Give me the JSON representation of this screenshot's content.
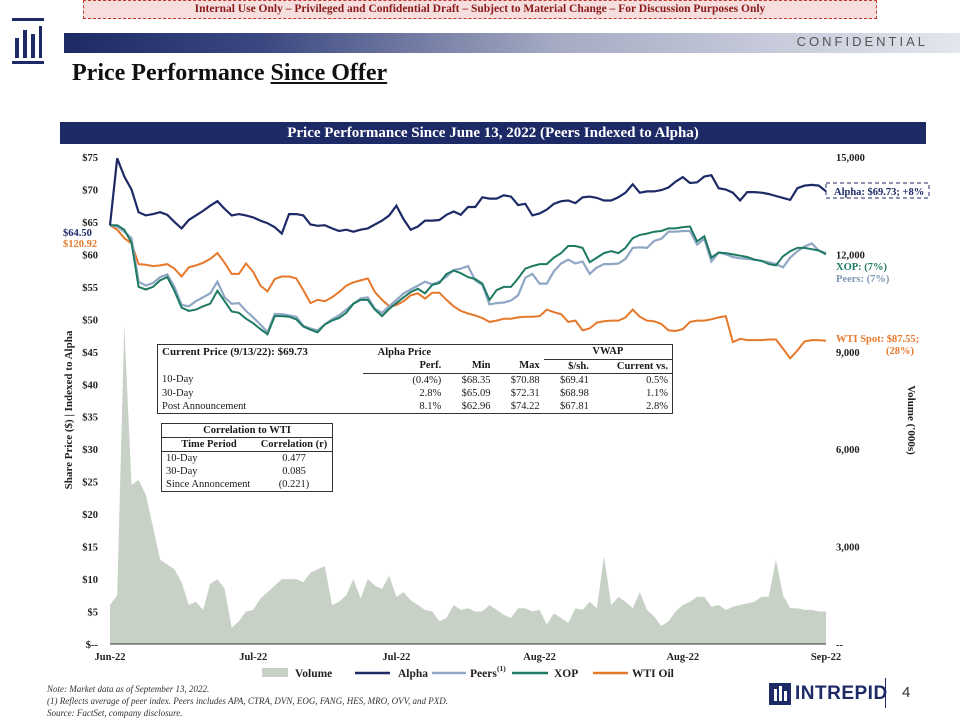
{
  "banner": "Internal Use Only – Privileged and Confidential Draft – Subject to Material Change – For Discussion Purposes Only",
  "confidential": "CONFIDENTIAL",
  "title_main": "Price Performance ",
  "title_underlined": "Since Offer",
  "chart_header": "Price Performance Since June 13, 2022 (Peers Indexed to Alpha)",
  "colors": {
    "navy": "#1e2a66",
    "peers": "#8fa7c4",
    "xop": "#1f7a63",
    "wti": "#e6782b",
    "volume": "#c7d1c6"
  },
  "chart_data": {
    "type": "line",
    "x_ticks": [
      "Jun-22",
      "Jul-22",
      "Jul-22",
      "Aug-22",
      "Aug-22",
      "Sep-22"
    ],
    "x_tick_index": [
      0,
      20,
      40,
      60,
      80,
      100
    ],
    "ylabel": "Share Price ($) | Indexed to Alpha",
    "ylim": [
      0,
      75
    ],
    "y_ticks": [
      "$--",
      "$5",
      "$10",
      "$15",
      "$20",
      "$25",
      "$30",
      "$35",
      "$40",
      "$45",
      "$50",
      "$55",
      "$60",
      "$65",
      "$70",
      "$75"
    ],
    "y2label": "Volume ('000s)",
    "y2lim": [
      0,
      15000
    ],
    "y2_ticks": [
      "--",
      "3,000",
      "6,000",
      "9,000",
      "12,000",
      "15,000"
    ],
    "series": [
      {
        "name": "Volume",
        "type": "area",
        "values": [
          1200,
          1500,
          9800,
          4900,
          5050,
          4600,
          3600,
          2600,
          2450,
          2300,
          1900,
          1200,
          1300,
          1050,
          1850,
          2000,
          1700,
          500,
          700,
          1000,
          1050,
          1400,
          1600,
          1800,
          2000,
          2000,
          2000,
          1900,
          2200,
          2300,
          2400,
          1200,
          1300,
          1500,
          2000,
          1400,
          2000,
          1800,
          1700,
          2100,
          1450,
          1600,
          1350,
          1200,
          1050,
          1000,
          700,
          800,
          1200,
          1050,
          1100,
          1000,
          1000,
          1200,
          1050,
          900,
          800,
          1100,
          1100,
          1000,
          1050,
          600,
          950,
          800,
          650,
          1100,
          1050,
          1300,
          1100,
          2700,
          1200,
          1450,
          1300,
          1100,
          1600,
          1050,
          850,
          550,
          700,
          1000,
          1200,
          1300,
          1450,
          1450,
          1150,
          1200,
          1050,
          1150,
          1200,
          1250,
          1300,
          1450,
          1450,
          2600,
          1500,
          1100,
          1100,
          1050,
          1050,
          1000,
          1000
        ]
      },
      {
        "name": "Alpha",
        "values": [
          64.5,
          74.8,
          72,
          70,
          66.5,
          66,
          66.2,
          66.5,
          66.1,
          65,
          64,
          65.3,
          66,
          66.7,
          67.5,
          68.2,
          67,
          66,
          66.2,
          66,
          65.7,
          65.2,
          64.8,
          64.2,
          63.2,
          66.2,
          66.2,
          66,
          64.6,
          64.4,
          64.5,
          64.0,
          63.6,
          63.8,
          63.5,
          63.8,
          64.0,
          64.6,
          65.2,
          66.0,
          67.5,
          65.4,
          63.8,
          64.3,
          65.2,
          65.2,
          65.3,
          66.1,
          66.6,
          66.1,
          67.3,
          67.3,
          68.8,
          68.6,
          68.6,
          69.1,
          68.9,
          67.6,
          67.8,
          66.0,
          66.3,
          66.9,
          67.8,
          68.2,
          68.3,
          67.9,
          68.8,
          68.9,
          68.7,
          68.3,
          68.3,
          68.8,
          69.5,
          70.8,
          69.5,
          69.7,
          69.7,
          69.9,
          70.3,
          71.2,
          71.9,
          71.0,
          71.1,
          72.0,
          72.2,
          70.2,
          70.0,
          69.5,
          68.3,
          69.6,
          69.6,
          69.5,
          69.3,
          69.0,
          68.7,
          68.4,
          70.2,
          70.6,
          70.7,
          70.6,
          69.73
        ]
      },
      {
        "name": "Peers",
        "values": [
          64.5,
          64.3,
          63.5,
          62.5,
          55.8,
          55.2,
          55.6,
          56.5,
          56.9,
          55.0,
          52.2,
          52.0,
          52.8,
          53.4,
          54.0,
          55.8,
          53.4,
          52.4,
          52.5,
          51.3,
          50.3,
          49.2,
          48.0,
          50.8,
          50.8,
          50.6,
          50.4,
          49.0,
          48.6,
          48.3,
          49.2,
          50.0,
          50.6,
          51.5,
          52.4,
          53.2,
          53.4,
          51.6,
          51.0,
          52.0,
          53.0,
          54.0,
          54.6,
          55.2,
          55.8,
          55.4,
          55.8,
          56.6,
          57.6,
          57.8,
          58.2,
          56.0,
          55.3,
          52.3,
          52.5,
          52.6,
          52.9,
          53.7,
          56.4,
          57.0,
          55.5,
          55.5,
          57.4,
          58.6,
          59.2,
          58.6,
          58.9,
          57.0,
          58.0,
          58.5,
          58.5,
          58.6,
          59.3,
          61.0,
          61.1,
          61.0,
          62.1,
          62.4,
          63.5,
          63.5,
          63.6,
          63.6,
          61.5,
          62.4,
          58.9,
          60.3,
          60.0,
          59.6,
          59.4,
          59.3,
          59.2,
          59.0,
          58.8,
          58.5,
          58.0,
          59.5,
          60.5,
          61.2,
          61.7,
          60.6,
          60.2
        ]
      },
      {
        "name": "XOP",
        "values": [
          64.5,
          64.5,
          63.8,
          61.8,
          55.0,
          54.6,
          55.0,
          56.0,
          56.5,
          54.4,
          51.8,
          51.3,
          51.5,
          52.0,
          52.4,
          54.4,
          52.8,
          51.2,
          51.0,
          50.1,
          49.4,
          48.5,
          47.7,
          50.5,
          50.5,
          50.4,
          50.0,
          48.9,
          48.4,
          48.0,
          49.2,
          49.8,
          50.2,
          51.0,
          52.4,
          53.0,
          53.0,
          51.5,
          50.5,
          51.6,
          52.5,
          53.4,
          54.2,
          54.7,
          54.0,
          55.3,
          55.6,
          57.0,
          57.5,
          57.1,
          56.5,
          56.2,
          55.5,
          53.0,
          54.5,
          55.0,
          55.0,
          56.3,
          57.8,
          58.2,
          58.5,
          58.5,
          59.5,
          60.2,
          61.3,
          61.3,
          61.0,
          58.8,
          59.5,
          60.2,
          60.5,
          60.2,
          61.0,
          62.5,
          63.0,
          63.2,
          63.5,
          63.6,
          64.0,
          64.0,
          64.2,
          64.3,
          62.0,
          62.8,
          59.5,
          60.3,
          60.2,
          60.0,
          59.8,
          59.6,
          59.2,
          59.0,
          58.5,
          58.3,
          59.7,
          60.5,
          61.0,
          61.0,
          60.8,
          60.6,
          60.0
        ]
      },
      {
        "name": "WTI Oil",
        "values": [
          64.5,
          63.8,
          62.5,
          61.7,
          58.5,
          58.4,
          58.2,
          58.3,
          58.5,
          57.8,
          56.6,
          58.0,
          58.3,
          58.7,
          59.3,
          60.2,
          58.7,
          57.0,
          57.0,
          58.6,
          57.3,
          55.2,
          54.3,
          56.2,
          56.6,
          56.6,
          56.3,
          54.5,
          52.5,
          53.0,
          52.8,
          53.4,
          54.2,
          55.2,
          55.7,
          56.0,
          56.3,
          54.2,
          53.0,
          52.0,
          52.2,
          52.8,
          53.7,
          54.0,
          53.2,
          54.1,
          54.1,
          53.0,
          52.0,
          51.3,
          50.9,
          50.6,
          50.2,
          49.6,
          49.8,
          50.1,
          50.1,
          50.3,
          50.4,
          50.4,
          50.5,
          51.5,
          51.1,
          50.8,
          49.6,
          49.8,
          48.3,
          48.6,
          49.5,
          49.7,
          49.8,
          49.8,
          50.3,
          51.5,
          50.4,
          49.8,
          49.7,
          49.3,
          48.3,
          48.2,
          48.5,
          49.6,
          49.8,
          49.8,
          50.0,
          50.3,
          50.5,
          46.5,
          47.0,
          46.8,
          46.8,
          46.8,
          46.9,
          46.9,
          45.5,
          44.0,
          45.2,
          46.6,
          46.8,
          46.8,
          46.7
        ]
      }
    ],
    "start_label_alpha": "$64.50",
    "start_label_wti": "$120.92",
    "end_labels": {
      "alpha": "Alpha: $69.73; +8%",
      "xop": "XOP: (7%)",
      "peers": "Peers: (7%)",
      "wti_line1": "WTI Spot: $87.55;",
      "wti_line2": "(28%)"
    },
    "legend": [
      "Volume",
      "Alpha",
      "Peers",
      "XOP",
      "WTI Oil"
    ],
    "legend_peers_sup": "(1)"
  },
  "table_price": {
    "current": "Current Price (9/13/22): $69.73",
    "group_alpha": "Alpha Price",
    "group_vwap": "VWAP",
    "headers": [
      "Perf.",
      "Min",
      "Max",
      "$/sh.",
      "Current vs."
    ],
    "rows": [
      [
        "10-Day",
        "(0.4%)",
        "$68.35",
        "$70.88",
        "$69.41",
        "0.5%"
      ],
      [
        "30-Day",
        "2.8%",
        "$65.09",
        "$72.31",
        "$68.98",
        "1.1%"
      ],
      [
        "Post Announcement",
        "8.1%",
        "$62.96",
        "$74.22",
        "$67.81",
        "2.8%"
      ]
    ]
  },
  "table_corr": {
    "title": "Correlation to WTI",
    "headers": [
      "Time Period",
      "Correlation (r)"
    ],
    "rows": [
      [
        "10-Day",
        "0.477"
      ],
      [
        "30-Day",
        "0.085"
      ],
      [
        "Since Annoncement",
        "(0.221)"
      ]
    ]
  },
  "footnotes": {
    "note": "Note: Market data as of September 13, 2022.",
    "fn1": "(1)      Reflects average of peer index. Peers includes APA, CTRA, DVN, EOG, FANG, HES, MRO, OVV, and PXD.",
    "source": "Source: FactSet, company disclosure."
  },
  "brand": "INTREPID",
  "page_number": "4"
}
